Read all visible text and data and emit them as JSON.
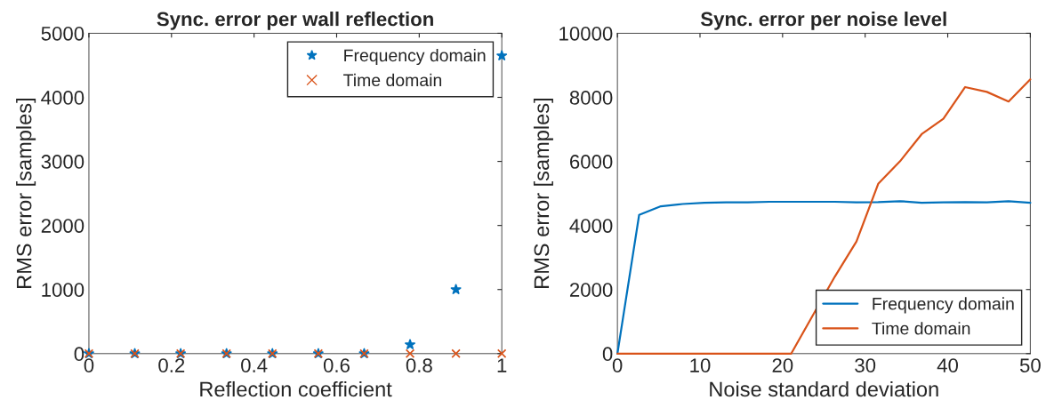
{
  "chart_data": [
    {
      "type": "scatter",
      "title": "Sync. error per wall reflection",
      "xlabel": "Reflection coefficient",
      "ylabel": "RMS error [samples]",
      "x": [
        0,
        0.1111,
        0.2222,
        0.3333,
        0.4444,
        0.5556,
        0.6667,
        0.7778,
        0.8889,
        1
      ],
      "series": [
        {
          "name": "Frequency domain",
          "color": "#0072bd",
          "marker": "star",
          "values": [
            0,
            0,
            0,
            0,
            0,
            0,
            0,
            140,
            1000,
            4650
          ]
        },
        {
          "name": "Time domain",
          "color": "#d95319",
          "marker": "cross",
          "values": [
            0,
            0,
            0,
            0,
            0,
            0,
            0,
            0,
            0,
            0
          ]
        }
      ],
      "xlim": [
        0,
        1
      ],
      "xticks": [
        0,
        0.2,
        0.4,
        0.6,
        0.8,
        1
      ],
      "ylim": [
        0,
        5000
      ],
      "yticks": [
        0,
        1000,
        2000,
        3000,
        4000,
        5000
      ],
      "grid": false,
      "legend": "top right"
    },
    {
      "type": "line",
      "title": "Sync. error per noise level",
      "xlabel": "Noise standard deviation",
      "ylabel": "RMS error [samples]",
      "x": [
        0,
        2.63,
        5.26,
        7.89,
        10.53,
        13.16,
        15.79,
        18.42,
        21.05,
        23.68,
        26.32,
        28.95,
        31.58,
        34.21,
        36.84,
        39.47,
        42.11,
        44.74,
        47.37,
        50
      ],
      "series": [
        {
          "name": "Frequency domain",
          "color": "#0072bd",
          "values": [
            0,
            4330,
            4600,
            4670,
            4710,
            4720,
            4720,
            4740,
            4740,
            4740,
            4740,
            4720,
            4730,
            4760,
            4710,
            4720,
            4730,
            4720,
            4760,
            4710
          ]
        },
        {
          "name": "Time domain",
          "color": "#d95319",
          "values": [
            0,
            0,
            0,
            0,
            0,
            0,
            0,
            0,
            0,
            1200,
            2400,
            3500,
            5300,
            6000,
            6850,
            7330,
            8320,
            8170,
            7870,
            8560
          ]
        }
      ],
      "xlim": [
        0,
        50
      ],
      "xticks": [
        0,
        10,
        20,
        30,
        40,
        50
      ],
      "ylim": [
        0,
        10000
      ],
      "yticks": [
        0,
        2000,
        4000,
        6000,
        8000,
        10000
      ],
      "grid": false,
      "legend": "bottom right"
    }
  ]
}
